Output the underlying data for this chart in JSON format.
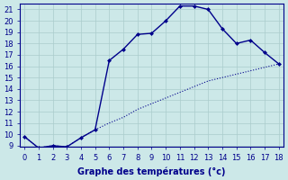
{
  "xlabel": "Graphe des températures (°c)",
  "line1_x": [
    0,
    1,
    2,
    3,
    4,
    5,
    6,
    7,
    8,
    9,
    10,
    11,
    12,
    13,
    14,
    15,
    16,
    17,
    18
  ],
  "line1_y": [
    9.8,
    8.8,
    9.0,
    8.9,
    9.7,
    10.4,
    16.5,
    17.5,
    18.8,
    18.9,
    20.0,
    21.3,
    21.3,
    21.0,
    19.3,
    18.0,
    18.3,
    17.2,
    16.2
  ],
  "line2_x": [
    0,
    1,
    2,
    3,
    4,
    5,
    6,
    7,
    8,
    9,
    10,
    11,
    12,
    13,
    14,
    15,
    16,
    17,
    18
  ],
  "line2_y": [
    9.8,
    8.8,
    9.0,
    8.9,
    9.7,
    10.4,
    11.0,
    11.5,
    12.2,
    12.7,
    13.2,
    13.7,
    14.2,
    14.7,
    15.0,
    15.3,
    15.6,
    15.9,
    16.2
  ],
  "line_color": "#00008b",
  "bg_color": "#cce8e8",
  "grid_color": "#aacccc",
  "ylim_min": 9,
  "ylim_max": 21.5,
  "xlim_min": -0.3,
  "xlim_max": 18.3,
  "yticks": [
    9,
    10,
    11,
    12,
    13,
    14,
    15,
    16,
    17,
    18,
    19,
    20,
    21
  ],
  "xticks": [
    0,
    1,
    2,
    3,
    4,
    5,
    6,
    7,
    8,
    9,
    10,
    11,
    12,
    13,
    14,
    15,
    16,
    17,
    18
  ],
  "xlabel_fontsize": 7,
  "tick_fontsize": 6
}
